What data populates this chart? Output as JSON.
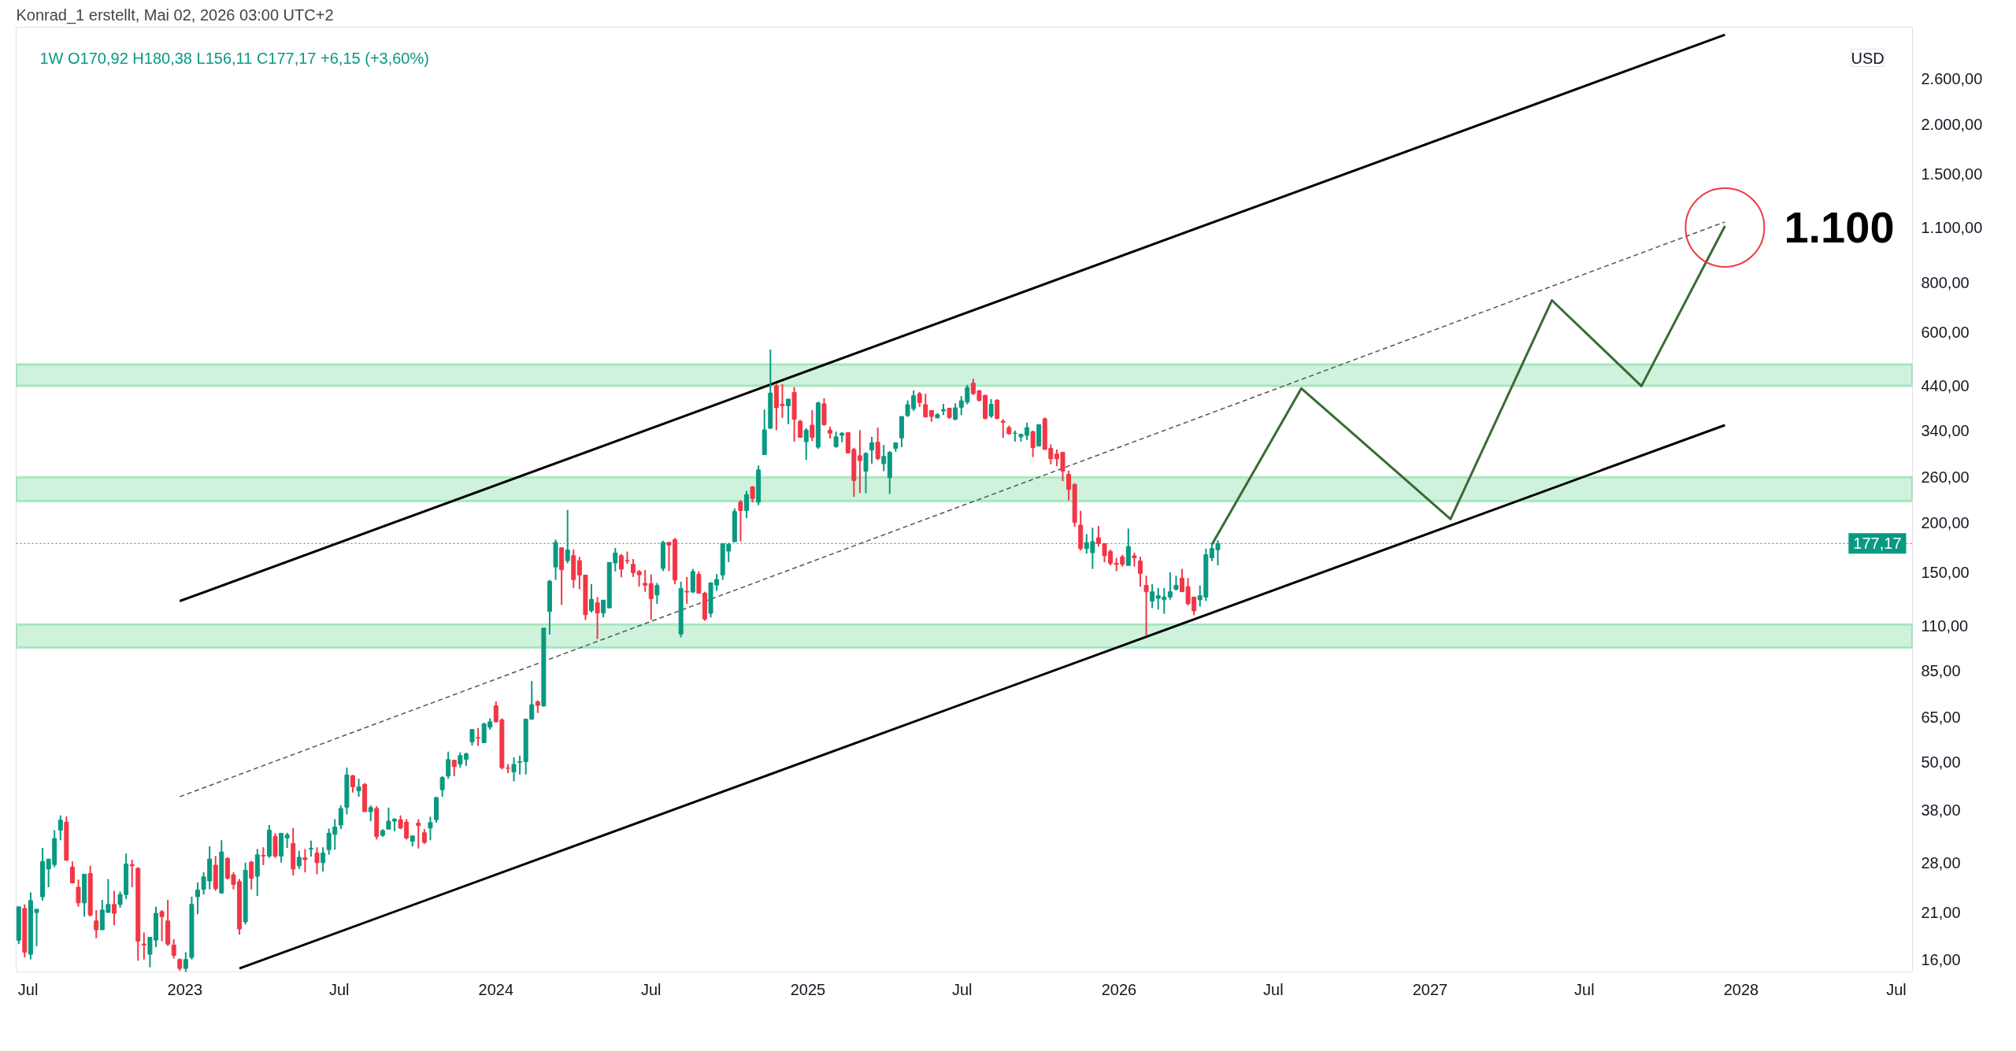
{
  "chart_data": {
    "type": "candlestick",
    "title": "1W",
    "subtitle": "O170,92 H180,38 L156,11 C177,17 +6,15 (+3,60%)",
    "x": [
      "2022-06-20",
      "2022-06-27",
      "2022-07-04",
      "2022-07-11",
      "2022-07-18",
      "2022-07-25",
      "2022-08-01",
      "2022-08-08",
      "2022-08-15",
      "2022-08-22",
      "2022-08-29",
      "2022-09-05",
      "2022-09-12",
      "2022-09-19",
      "2022-09-26",
      "2022-10-03",
      "2022-10-10",
      "2022-10-17",
      "2022-10-24",
      "2022-10-31",
      "2022-11-07",
      "2022-11-14",
      "2022-11-21",
      "2022-11-28",
      "2022-12-05",
      "2022-12-12",
      "2022-12-19",
      "2022-12-26",
      "2023-01-02",
      "2023-01-09",
      "2023-01-16",
      "2023-01-23",
      "2023-01-30",
      "2023-02-06",
      "2023-02-13",
      "2023-02-20",
      "2023-02-27",
      "2023-03-06",
      "2023-03-13",
      "2023-03-20",
      "2023-03-27",
      "2023-04-03",
      "2023-04-10",
      "2023-04-17",
      "2023-04-24",
      "2023-05-01",
      "2023-05-08",
      "2023-05-15",
      "2023-05-22",
      "2023-05-29",
      "2023-06-05",
      "2023-06-12",
      "2023-06-19",
      "2023-06-26",
      "2023-07-03",
      "2023-07-10",
      "2023-07-17",
      "2023-07-24",
      "2023-07-31",
      "2023-08-07",
      "2023-08-14",
      "2023-08-21",
      "2023-08-28",
      "2023-09-04",
      "2023-09-11",
      "2023-09-18",
      "2023-09-25",
      "2023-10-02",
      "2023-10-09",
      "2023-10-16",
      "2023-10-23",
      "2023-10-30",
      "2023-11-06",
      "2023-11-13",
      "2023-11-20",
      "2023-11-27",
      "2023-12-04",
      "2023-12-11",
      "2023-12-18",
      "2023-12-25",
      "2024-01-01",
      "2024-01-08",
      "2024-01-15",
      "2024-01-22",
      "2024-01-29",
      "2024-02-05",
      "2024-02-12",
      "2024-02-19",
      "2024-02-26",
      "2024-03-04",
      "2024-03-11",
      "2024-03-18",
      "2024-03-25",
      "2024-04-01",
      "2024-04-08",
      "2024-04-15",
      "2024-04-22",
      "2024-04-29",
      "2024-05-06",
      "2024-05-13",
      "2024-05-20",
      "2024-05-27",
      "2024-06-03",
      "2024-06-10",
      "2024-06-17",
      "2024-06-24",
      "2024-07-01",
      "2024-07-08",
      "2024-07-15",
      "2024-07-22",
      "2024-07-29",
      "2024-08-05",
      "2024-08-12",
      "2024-08-19",
      "2024-08-26",
      "2024-09-02",
      "2024-09-09",
      "2024-09-16",
      "2024-09-23",
      "2024-09-30",
      "2024-10-07",
      "2024-10-14",
      "2024-10-21",
      "2024-10-28",
      "2024-11-04",
      "2024-11-11",
      "2024-11-18",
      "2024-11-25",
      "2024-12-02",
      "2024-12-09",
      "2024-12-16",
      "2024-12-23",
      "2024-12-30",
      "2025-01-06",
      "2025-01-13",
      "2025-01-20",
      "2025-01-27",
      "2025-02-03",
      "2025-02-10",
      "2025-02-17",
      "2025-02-24",
      "2025-03-03",
      "2025-03-10",
      "2025-03-17",
      "2025-03-24",
      "2025-03-31",
      "2025-04-07",
      "2025-04-14",
      "2025-04-21",
      "2025-04-28",
      "2025-05-05",
      "2025-05-12",
      "2025-05-19",
      "2025-05-26",
      "2025-06-02",
      "2025-06-09",
      "2025-06-16",
      "2025-06-23",
      "2025-06-30",
      "2025-07-07",
      "2025-07-14",
      "2025-07-21",
      "2025-07-28",
      "2025-08-04",
      "2025-08-11",
      "2025-08-18",
      "2025-08-25",
      "2025-09-01",
      "2025-09-08",
      "2025-09-15",
      "2025-09-22",
      "2025-09-29",
      "2025-10-06",
      "2025-10-13",
      "2025-10-20",
      "2025-10-27",
      "2025-11-03",
      "2025-11-10",
      "2025-11-17",
      "2025-11-24",
      "2025-12-01",
      "2025-12-08",
      "2025-12-15",
      "2025-12-22",
      "2025-12-29",
      "2026-01-05",
      "2026-01-12",
      "2026-01-19",
      "2026-01-26",
      "2026-02-02",
      "2026-02-09",
      "2026-02-16",
      "2026-02-23",
      "2026-03-02",
      "2026-03-09",
      "2026-03-16",
      "2026-03-23",
      "2026-03-30",
      "2026-04-06",
      "2026-04-13",
      "2026-04-20",
      "2026-04-27"
    ],
    "ohlc": [
      [
        17.9,
        21.7,
        17.5,
        21.7
      ],
      [
        21.5,
        22,
        16.2,
        16.7
      ],
      [
        16.5,
        23.6,
        16,
        22.5
      ],
      [
        21,
        21.4,
        17.3,
        21.4
      ],
      [
        23,
        30.5,
        22.5,
        28.2
      ],
      [
        27,
        28.6,
        24.3,
        28.6
      ],
      [
        27.7,
        33.8,
        27.3,
        32.2
      ],
      [
        33.8,
        36.8,
        31.9,
        35.8
      ],
      [
        35.4,
        36.6,
        28.3,
        28.4
      ],
      [
        27.3,
        28.2,
        24.9,
        24.9
      ],
      [
        24.3,
        25.4,
        21.7,
        22.2
      ],
      [
        22.2,
        26.2,
        20.5,
        26.2
      ],
      [
        26.3,
        27.5,
        20.5,
        20.7
      ],
      [
        20,
        21.3,
        18.1,
        19
      ],
      [
        19,
        22.6,
        19,
        21.3
      ],
      [
        21,
        25.5,
        21,
        22
      ],
      [
        22,
        23.8,
        19.5,
        20.9
      ],
      [
        22,
        23.7,
        21.6,
        23.3
      ],
      [
        23.3,
        29.5,
        22.7,
        27.8
      ],
      [
        27.7,
        28.5,
        24.3,
        27.5
      ],
      [
        27.1,
        27.3,
        15.9,
        17.8
      ],
      [
        17.5,
        18.7,
        16,
        17.4
      ],
      [
        16.5,
        18.2,
        15.3,
        18.2
      ],
      [
        17.9,
        21.7,
        17.2,
        20.9
      ],
      [
        21.1,
        21.3,
        17.8,
        20.5
      ],
      [
        20,
        22.6,
        17.3,
        17.5
      ],
      [
        17.4,
        18,
        16.1,
        16.4
      ],
      [
        16,
        16.1,
        15.0,
        15.2
      ],
      [
        15.2,
        16.7,
        14.8,
        16
      ],
      [
        16.2,
        23,
        16,
        22
      ],
      [
        23,
        25,
        20.8,
        23.9
      ],
      [
        24,
        26.5,
        23.3,
        25.8
      ],
      [
        25.2,
        30.8,
        24,
        28.6
      ],
      [
        27.6,
        29.1,
        23.8,
        24.1
      ],
      [
        23.5,
        31.9,
        23.4,
        29.8
      ],
      [
        28.7,
        28.9,
        25.4,
        25.6
      ],
      [
        26.1,
        26.5,
        24,
        24.7
      ],
      [
        25.1,
        25.5,
        18.5,
        19.1
      ],
      [
        19.9,
        28,
        19.6,
        26.8
      ],
      [
        28.1,
        28.3,
        24,
        25.6
      ],
      [
        25.9,
        30.3,
        23.1,
        29.3
      ],
      [
        29.2,
        30.6,
        27.6,
        29.1
      ],
      [
        29.1,
        34.8,
        28.8,
        33.8
      ],
      [
        32.6,
        33.2,
        28.8,
        29.1
      ],
      [
        29.1,
        33.2,
        28,
        33.2
      ],
      [
        32.3,
        33.3,
        30.5,
        32.9
      ],
      [
        31.3,
        34.2,
        26,
        27
      ],
      [
        27.5,
        30,
        27,
        28.9
      ],
      [
        28.8,
        30.3,
        26.5,
        28.5
      ],
      [
        30.3,
        31.8,
        29,
        30.4
      ],
      [
        29.6,
        30.6,
        26.2,
        28
      ],
      [
        28,
        30.6,
        26.6,
        29.6
      ],
      [
        30.2,
        34.1,
        29.3,
        33.2
      ],
      [
        33,
        36,
        30.2,
        34.4
      ],
      [
        34.8,
        39,
        34,
        38.3
      ],
      [
        38.6,
        48.5,
        37,
        46.5
      ],
      [
        46.3,
        46.5,
        42,
        43.4
      ],
      [
        42.4,
        45.5,
        41,
        43.4
      ],
      [
        44,
        44.4,
        37.6,
        37.6
      ],
      [
        37.6,
        39,
        35.6,
        38.5
      ],
      [
        38.3,
        38.8,
        32,
        32.6
      ],
      [
        32.8,
        34,
        32.5,
        33.7
      ],
      [
        34,
        38.5,
        34,
        35.6
      ],
      [
        35.6,
        36.2,
        33.6,
        36
      ],
      [
        35.9,
        36.8,
        34,
        34.2
      ],
      [
        35.4,
        36,
        32,
        32.3
      ],
      [
        31.7,
        32.7,
        30.8,
        32.7
      ],
      [
        35.2,
        36,
        30.4,
        34.7
      ],
      [
        33.3,
        34,
        31.2,
        31.5
      ],
      [
        34.2,
        36.5,
        31.9,
        35.3
      ],
      [
        35.9,
        41,
        35.3,
        40.8
      ],
      [
        42.7,
        46.2,
        41,
        45.8
      ],
      [
        46.2,
        53.2,
        45.5,
        50.8
      ],
      [
        50.6,
        50.6,
        46.2,
        48.8
      ],
      [
        49.5,
        53,
        48.5,
        52
      ],
      [
        50.9,
        52.9,
        49,
        52.5
      ],
      [
        56.3,
        60.5,
        55.1,
        60.5
      ],
      [
        57.7,
        61,
        55,
        57.5
      ],
      [
        56,
        62.8,
        56,
        62.5
      ],
      [
        61.3,
        64.5,
        60.4,
        63.2
      ],
      [
        69.3,
        71.1,
        63,
        63.2
      ],
      [
        63.9,
        64.5,
        48,
        48.5
      ],
      [
        48.4,
        49.5,
        47,
        48.3
      ],
      [
        47.3,
        51.5,
        44.8,
        49.4
      ],
      [
        50,
        52,
        46.6,
        50.2
      ],
      [
        50.2,
        64.2,
        46.6,
        64.2
      ],
      [
        64.2,
        80,
        64,
        69.8
      ],
      [
        71,
        71.5,
        66.5,
        69.5
      ],
      [
        69.3,
        108.6,
        69,
        108.6
      ],
      [
        119.6,
        143.5,
        104.7,
        142.4
      ],
      [
        154.6,
        181.2,
        143.5,
        178.3
      ],
      [
        172.8,
        173,
        124.2,
        152.2
      ],
      [
        160.4,
        215,
        158,
        170.5
      ],
      [
        165.1,
        171,
        137,
        143.8
      ],
      [
        160.4,
        164,
        136,
        147.6
      ],
      [
        147.6,
        147.6,
        113.8,
        117.3
      ],
      [
        120.2,
        140,
        118.8,
        128.3
      ],
      [
        125.7,
        130,
        102,
        118.5
      ],
      [
        118.5,
        127.7,
        115.6,
        127.7
      ],
      [
        122.1,
        158.8,
        122,
        158.8
      ],
      [
        158.3,
        172.5,
        150.7,
        167.7
      ],
      [
        165.1,
        166.8,
        145.7,
        152.7
      ],
      [
        160.6,
        169,
        157.5,
        160
      ],
      [
        157,
        162,
        146,
        149.7
      ],
      [
        150.5,
        152,
        138,
        147.8
      ],
      [
        140.7,
        152,
        134,
        139.2
      ],
      [
        140.5,
        148,
        114,
        128.8
      ],
      [
        131.5,
        141,
        125,
        139
      ],
      [
        153.4,
        180,
        151,
        178.2
      ],
      [
        178.2,
        179,
        151,
        175.4
      ],
      [
        181,
        183,
        140,
        143.4
      ],
      [
        105,
        142,
        103,
        136.5
      ],
      [
        134.4,
        146,
        125,
        133.8
      ],
      [
        133.8,
        153,
        133,
        150.6
      ],
      [
        148.2,
        150.7,
        132.5,
        132.9
      ],
      [
        132.9,
        134,
        113.3,
        114.5
      ],
      [
        118.3,
        141.5,
        115.5,
        141.1
      ],
      [
        139.3,
        148.5,
        134.6,
        143.9
      ],
      [
        147.7,
        176.9,
        143.6,
        176.9
      ],
      [
        169.5,
        177.7,
        159,
        176.3
      ],
      [
        179,
        217,
        178.6,
        213.1
      ],
      [
        225.1,
        227.8,
        179.4,
        214.2
      ],
      [
        214.2,
        240,
        205,
        235
      ],
      [
        245.6,
        247,
        224.6,
        229.8
      ],
      [
        225,
        278,
        221,
        271
      ],
      [
        296,
        384,
        296,
        341.5
      ],
      [
        345,
        543,
        343,
        422.5
      ],
      [
        440,
        447,
        341,
        388
      ],
      [
        396,
        445,
        366,
        393
      ],
      [
        392.5,
        408,
        353,
        408
      ],
      [
        424,
        437,
        319,
        363
      ],
      [
        359,
        362,
        327,
        327
      ],
      [
        319,
        345,
        287,
        341
      ],
      [
        351,
        383,
        320,
        327
      ],
      [
        309,
        402,
        306,
        399
      ],
      [
        397,
        410,
        350,
        352
      ],
      [
        341,
        348,
        325,
        335
      ],
      [
        310,
        338,
        308,
        328
      ],
      [
        331,
        337,
        318,
        335
      ],
      [
        336,
        337,
        298,
        299
      ],
      [
        305,
        308,
        232,
        255
      ],
      [
        294,
        341,
        237,
        286
      ],
      [
        269,
        300,
        237,
        298
      ],
      [
        304,
        328,
        281,
        317
      ],
      [
        318,
        346,
        287,
        289
      ],
      [
        281,
        313,
        269,
        293
      ],
      [
        259,
        302,
        236,
        300
      ],
      [
        307,
        317,
        301,
        317
      ],
      [
        326,
        369,
        309,
        369
      ],
      [
        371,
        405,
        368,
        395
      ],
      [
        386,
        429,
        381,
        416
      ],
      [
        421,
        425,
        390,
        400
      ],
      [
        395,
        421,
        367,
        368
      ],
      [
        382,
        382,
        358,
        369
      ],
      [
        366,
        376,
        366,
        373
      ],
      [
        381,
        397,
        372,
        384
      ],
      [
        387,
        388,
        364,
        367
      ],
      [
        363,
        398,
        361,
        388
      ],
      [
        389,
        415,
        372,
        404
      ],
      [
        401,
        443,
        396,
        436
      ],
      [
        447,
        459,
        418,
        421
      ],
      [
        428,
        430,
        402,
        405
      ],
      [
        417,
        418,
        363,
        365
      ],
      [
        370,
        408,
        366,
        396
      ],
      [
        405,
        408,
        363,
        365
      ],
      [
        359,
        363,
        326,
        357
      ],
      [
        346,
        350,
        332,
        334
      ],
      [
        335,
        340,
        319,
        335
      ],
      [
        328,
        333,
        319,
        333
      ],
      [
        331,
        356,
        322,
        346
      ],
      [
        338,
        340,
        292,
        308
      ],
      [
        311,
        352,
        311,
        352
      ],
      [
        364,
        367,
        305,
        305
      ],
      [
        307,
        314,
        280,
        289
      ],
      [
        297,
        305,
        277,
        289
      ],
      [
        300,
        300,
        254,
        269
      ],
      [
        264,
        270,
        227,
        242
      ],
      [
        249,
        251,
        195,
        200
      ],
      [
        197,
        214,
        170,
        172
      ],
      [
        172,
        187,
        167,
        178
      ],
      [
        168,
        194,
        153,
        179
      ],
      [
        183,
        196,
        174,
        177
      ],
      [
        177,
        177,
        159,
        165
      ],
      [
        169,
        171,
        156,
        158
      ],
      [
        158,
        163,
        151,
        157
      ],
      [
        164,
        166,
        155,
        157
      ],
      [
        156,
        193,
        156,
        174
      ],
      [
        165,
        168,
        155,
        163
      ],
      [
        160,
        164,
        138,
        149
      ],
      [
        139,
        147,
        104,
        134
      ],
      [
        127,
        140,
        122,
        134
      ],
      [
        129,
        137,
        121,
        131
      ],
      [
        128,
        137,
        118,
        130
      ],
      [
        130,
        150,
        128,
        134
      ],
      [
        136,
        147,
        135,
        139
      ],
      [
        145,
        153,
        134,
        134
      ],
      [
        138,
        145,
        124,
        125
      ],
      [
        130,
        130,
        117,
        120
      ],
      [
        128,
        139,
        123,
        131
      ],
      [
        130,
        172,
        127,
        166
      ],
      [
        163,
        177,
        160,
        172
      ],
      [
        170.92,
        180.38,
        156.11,
        177.17
      ]
    ],
    "series": [
      {
        "type": "line",
        "color": "#000000",
        "x": [
          "2022-12-26",
          "2027-12-13"
        ],
        "values": [
          127,
          3350
        ]
      },
      {
        "type": "line",
        "color": "#000000",
        "x": [
          "2023-03-06",
          "2027-12-13"
        ],
        "values": [
          15.2,
          351
        ]
      },
      {
        "type": "line",
        "color": "#555555",
        "line_style": "dashed",
        "x": [
          "2022-12-26",
          "2027-12-13"
        ],
        "values": [
          41,
          1136
        ]
      },
      {
        "type": "line",
        "color": "#3a6b35",
        "x": [
          "2026-04-20",
          "2026-08-03",
          "2027-01-25",
          "2027-05-24",
          "2027-09-06",
          "2027-12-13"
        ],
        "values": [
          176,
          434,
          204,
          722,
          440,
          1110
        ]
      }
    ],
    "log": true,
    "xlim": [
      "2022-06-17",
      "2028-07-20"
    ],
    "xticks": [
      {
        "value": "2022-07-01",
        "label": "Jul"
      },
      {
        "value": "2023-01-01",
        "label": "2023"
      },
      {
        "value": "2023-07-01",
        "label": "Jul"
      },
      {
        "value": "2024-01-01",
        "label": "2024"
      },
      {
        "value": "2024-07-01",
        "label": "Jul"
      },
      {
        "value": "2025-01-01",
        "label": "2025"
      },
      {
        "value": "2025-07-01",
        "label": "Jul"
      },
      {
        "value": "2026-01-01",
        "label": "2026"
      },
      {
        "value": "2026-07-01",
        "label": "Jul"
      },
      {
        "value": "2027-01-01",
        "label": "2027"
      },
      {
        "value": "2027-07-01",
        "label": "Jul"
      },
      {
        "value": "2028-01-01",
        "label": "2028"
      },
      {
        "value": "2028-07-01",
        "label": "Jul"
      }
    ],
    "ylim": [
      14.9,
      3500
    ],
    "yticks": [
      {
        "value": 16,
        "label": "16,00"
      },
      {
        "value": 21,
        "label": "21,00"
      },
      {
        "value": 28,
        "label": "28,00"
      },
      {
        "value": 38,
        "label": "38,00"
      },
      {
        "value": 50,
        "label": "50,00"
      },
      {
        "value": 65,
        "label": "65,00"
      },
      {
        "value": 85,
        "label": "85,00"
      },
      {
        "value": 110,
        "label": "110,00"
      },
      {
        "value": 150,
        "label": "150,00"
      },
      {
        "value": 200,
        "label": "200,00"
      },
      {
        "value": 260,
        "label": "260,00"
      },
      {
        "value": 340,
        "label": "340,00"
      },
      {
        "value": 440,
        "label": "440,00"
      },
      {
        "value": 600,
        "label": "600,00"
      },
      {
        "value": 800,
        "label": "800,00"
      },
      {
        "value": 1100,
        "label": "1.100,00"
      },
      {
        "value": 1500,
        "label": "1.500,00"
      },
      {
        "value": 2000,
        "label": "2.000,00"
      },
      {
        "value": 2600,
        "label": "2.600,00"
      }
    ],
    "ref_lines": [
      {
        "axis": "y",
        "value": 177.17,
        "label": "177,17",
        "color": "#089981",
        "line_style": "dotted"
      }
    ],
    "bands": [
      {
        "axis": "y",
        "from": 440,
        "to": 499,
        "color": "#22c55e"
      },
      {
        "axis": "y",
        "from": 226,
        "to": 260,
        "color": "#22c55e"
      },
      {
        "axis": "y",
        "from": 97,
        "to": 111,
        "color": "#22c55e"
      }
    ],
    "annotations": [
      "Konrad_1 erstellt, Mai 02, 2026 03:00 UTC+2",
      "USD",
      {
        "text": "1.100",
        "x": "2027-12-13",
        "y": 1100
      }
    ]
  }
}
